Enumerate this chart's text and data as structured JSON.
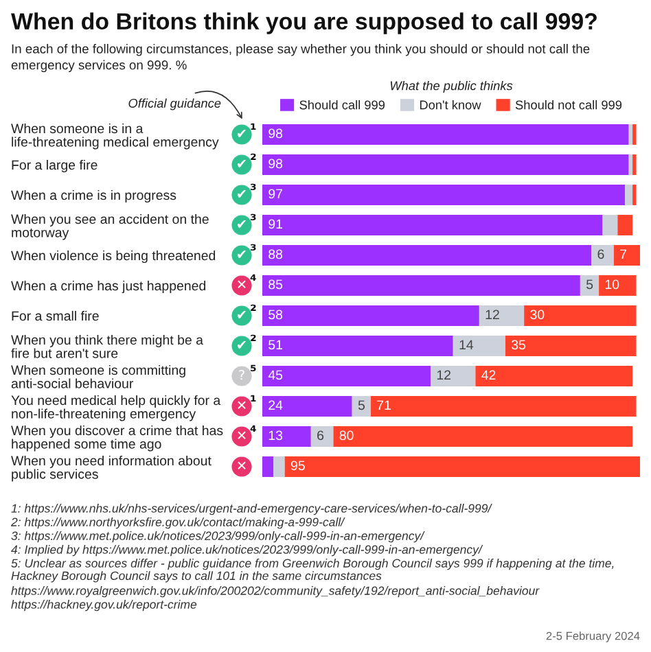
{
  "chart_data": {
    "type": "bar",
    "orientation": "horizontal",
    "stacked": true,
    "title": "When do Britons think you are supposed to call 999?",
    "subtitle": "In each of the following circumstances, please say whether you think you should or should not call the emergency services on 999. %",
    "legend_title": "What the public thinks",
    "legend": "top",
    "tick_labels": "y",
    "categories": [
      "When someone is in a life-threatening medical emergency",
      "For a large fire",
      "When a crime is in progress",
      "When you see an accident on the motorway",
      "When violence is being threatened",
      "When a crime has just happened",
      "For a small fire",
      "When you think there might be a fire but aren't sure",
      "When someone is committing anti-social behaviour",
      "You need medical help quickly for a non-life-threatening emergency",
      "When you discover a crime that has happened some time ago",
      "When you need information about public services"
    ],
    "series": [
      {
        "name": "Should call 999",
        "color": "#9b30ff",
        "values": [
          98,
          98,
          97,
          91,
          88,
          85,
          58,
          51,
          45,
          24,
          13,
          3
        ],
        "value_labels": [
          "98",
          "98",
          "97",
          "91",
          "88",
          "85",
          "58",
          "51",
          "45",
          "24",
          "13",
          null
        ]
      },
      {
        "name": "Don't know",
        "color": "#cdd1db",
        "values": [
          1,
          1,
          2,
          4,
          6,
          5,
          12,
          14,
          12,
          5,
          6,
          3
        ],
        "value_labels": [
          null,
          null,
          null,
          null,
          "6",
          "5",
          "12",
          "14",
          "12",
          "5",
          "6",
          null
        ]
      },
      {
        "name": "Should not call 999",
        "color": "#ff412c",
        "values": [
          1,
          1,
          1,
          4,
          7,
          10,
          30,
          35,
          42,
          71,
          80,
          95
        ],
        "value_labels": [
          null,
          null,
          null,
          null,
          "7",
          "10",
          "30",
          "35",
          "42",
          "71",
          "80",
          "95"
        ]
      }
    ],
    "annotations": [
      "Official guidance",
      "✔¹",
      "✔²",
      "✔³",
      "✔³",
      "✔³",
      "✕⁴",
      "✔²",
      "✔²",
      "?⁵",
      "✕¹",
      "✕⁴",
      "✕",
      "1: https://www.nhs.uk/nhs-services/urgent-and-emergency-care-services/when-to-call-999/",
      "2: https://www.northyorksfire.gov.uk/contact/making-a-999-call/",
      "3: https://www.met.police.uk/notices/2023/999/only-call-999-in-an-emergency/",
      "4: Implied by https://www.met.police.uk/notices/2023/999/only-call-999-in-an-emergency/",
      "5: Unclear as sources differ - public guidance from Greenwich Borough Council says 999 if happening at the time, Hackney Borough Council says to call 101 in the same circumstances",
      "https://www.royalgreenwich.gov.uk/info/200202/community_safety/192/report_anti-social_behaviour",
      "https://hackney.gov.uk/report-crime",
      "2-5 February 2024"
    ]
  }
}
